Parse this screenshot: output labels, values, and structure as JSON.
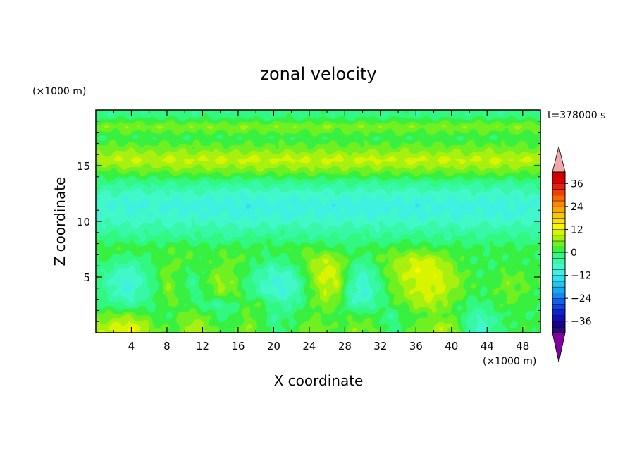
{
  "chart_data": {
    "type": "heatmap",
    "title": "zonal velocity",
    "xlabel": "X coordinate",
    "ylabel": "Z coordinate",
    "x_unit": "(×1000 m)",
    "y_unit": "(×1000 m)",
    "time_label": "t=378000 s",
    "xlim": [
      0,
      50
    ],
    "ylim": [
      0,
      20
    ],
    "x_ticks": [
      "4",
      "8",
      "12",
      "16",
      "20",
      "24",
      "28",
      "32",
      "36",
      "40",
      "44",
      "48"
    ],
    "x_tick_values": [
      4,
      8,
      12,
      16,
      20,
      24,
      28,
      32,
      36,
      40,
      44,
      48
    ],
    "y_ticks": [
      "5",
      "10",
      "15"
    ],
    "y_tick_values": [
      5,
      10,
      15
    ],
    "grid": false,
    "colorbar": {
      "placement": "right",
      "levels": [
        -42,
        -39,
        -36,
        -33,
        -30,
        -27,
        -24,
        -21,
        -18,
        -15,
        -12,
        -9,
        -6,
        -3,
        0,
        3,
        6,
        9,
        12,
        15,
        18,
        21,
        24,
        27,
        30,
        33,
        36,
        39,
        42
      ],
      "colors": [
        "#2a0a78",
        "#1b0090",
        "#1010b0",
        "#1020d0",
        "#1040e8",
        "#1060f0",
        "#1488f0",
        "#18a8f0",
        "#20c8f0",
        "#30e0ef",
        "#40f0e0",
        "#40f8c8",
        "#38f8a8",
        "#30f880",
        "#38f040",
        "#70f020",
        "#a8f010",
        "#d8f400",
        "#f8f800",
        "#f8e000",
        "#f8c800",
        "#f8a800",
        "#f88800",
        "#f86800",
        "#f04000",
        "#e82010",
        "#e00000",
        "#d00000"
      ],
      "labels": [
        "36",
        "24",
        "12",
        "0",
        "-12",
        "-24",
        "-36"
      ],
      "label_values": [
        36,
        24,
        12,
        0,
        -12,
        -24,
        -36
      ],
      "under_color": "#8000a0",
      "over_color": "#f0a8a8"
    },
    "z_rows": [
      [
        8,
        10,
        12,
        9,
        4,
        2,
        4,
        8,
        6,
        1,
        2,
        6,
        3,
        -2,
        0,
        2,
        6,
        4,
        2,
        5,
        4,
        3,
        -2,
        1,
        4,
        6,
        8,
        6,
        -4,
        -8,
        -3,
        0,
        2,
        1
      ],
      [
        4,
        5,
        6,
        4,
        1,
        0,
        3,
        5,
        3,
        -1,
        0,
        4,
        1,
        -3,
        -1,
        0,
        3,
        2,
        1,
        2,
        2,
        1,
        -3,
        0,
        2,
        3,
        4,
        2,
        -3,
        -6,
        -2,
        0,
        1,
        0
      ],
      [
        -1,
        -2,
        -4,
        -2,
        0,
        3,
        2,
        0,
        -2,
        -4,
        -1,
        2,
        3,
        -1,
        -4,
        -2,
        2,
        6,
        3,
        -4,
        -6,
        -2,
        1,
        3,
        6,
        8,
        6,
        2,
        -1,
        -2,
        1,
        3,
        2,
        0
      ],
      [
        -2,
        -6,
        -9,
        -5,
        -1,
        5,
        2,
        -2,
        1,
        5,
        4,
        0,
        -4,
        -8,
        -9,
        -4,
        3,
        8,
        6,
        -6,
        -10,
        -4,
        2,
        6,
        9,
        10,
        8,
        5,
        2,
        0,
        2,
        4,
        3,
        1
      ],
      [
        -3,
        -8,
        -10,
        -6,
        -1,
        6,
        1,
        -3,
        3,
        7,
        5,
        -1,
        -6,
        -9,
        -10,
        -5,
        4,
        10,
        9,
        -4,
        -9,
        -3,
        3,
        7,
        10,
        11,
        10,
        7,
        3,
        1,
        2,
        5,
        4,
        2
      ],
      [
        -2,
        -6,
        -8,
        -4,
        0,
        5,
        2,
        -1,
        2,
        5,
        3,
        0,
        -4,
        -7,
        -6,
        -2,
        6,
        11,
        8,
        -2,
        -7,
        -1,
        5,
        9,
        11,
        12,
        9,
        5,
        2,
        0,
        1,
        3,
        2,
        1
      ],
      [
        0,
        -1,
        -3,
        -2,
        1,
        3,
        3,
        2,
        1,
        3,
        4,
        2,
        0,
        -2,
        -1,
        2,
        6,
        9,
        7,
        1,
        -2,
        2,
        5,
        8,
        10,
        10,
        7,
        3,
        1,
        0,
        0,
        1,
        1,
        0
      ],
      [
        1,
        2,
        2,
        2,
        1,
        2,
        3,
        2,
        1,
        2,
        2,
        1,
        1,
        1,
        2,
        3,
        3,
        2,
        1,
        0,
        1,
        2,
        2,
        3,
        3,
        2,
        2,
        1,
        1,
        1,
        1,
        1,
        1,
        1
      ],
      [
        -2,
        -1,
        -2,
        -3,
        -2,
        -1,
        -2,
        -3,
        -2,
        -2,
        -3,
        -2,
        -1,
        -2,
        -3,
        -2,
        -2,
        -3,
        -3,
        -2,
        -2,
        -3,
        -2,
        -2,
        -1,
        -2,
        -3,
        -2,
        -2,
        -3,
        -2,
        -2,
        -2,
        -2
      ],
      [
        -5,
        -5,
        -6,
        -5,
        -5,
        -6,
        -5,
        -5,
        -6,
        -5,
        -5,
        -6,
        -6,
        -5,
        -5,
        -6,
        -5,
        -5,
        -6,
        -5,
        -5,
        -6,
        -5,
        -5,
        -6,
        -5,
        -5,
        -5,
        -6,
        -5,
        -5,
        -6,
        -5,
        -5
      ],
      [
        -8,
        -8,
        -9,
        -8,
        -8,
        -9,
        -9,
        -8,
        -9,
        -9,
        -10,
        -10,
        -9,
        -9,
        -10,
        -9,
        -9,
        -10,
        -9,
        -9,
        -10,
        -9,
        -9,
        -10,
        -10,
        -9,
        -9,
        -10,
        -9,
        -9,
        -10,
        -9,
        -9,
        -8
      ],
      [
        -9,
        -9,
        -10,
        -10,
        -9,
        -10,
        -10,
        -10,
        -11,
        -10,
        -10,
        -11,
        -11,
        -10,
        -10,
        -11,
        -10,
        -10,
        -11,
        -11,
        -10,
        -11,
        -10,
        -10,
        -11,
        -10,
        -10,
        -11,
        -10,
        -10,
        -11,
        -10,
        -10,
        -9
      ],
      [
        -6,
        -6,
        -7,
        -7,
        -6,
        -7,
        -7,
        -6,
        -7,
        -7,
        -8,
        -8,
        -7,
        -7,
        -8,
        -7,
        -7,
        -8,
        -7,
        -7,
        -8,
        -7,
        -7,
        -8,
        -8,
        -7,
        -7,
        -8,
        -7,
        -7,
        -8,
        -7,
        -7,
        -6
      ],
      [
        -2,
        -2,
        -3,
        -2,
        -2,
        -3,
        -2,
        -2,
        -3,
        -2,
        -2,
        -3,
        -3,
        -2,
        -2,
        -3,
        -2,
        -2,
        -3,
        -2,
        -2,
        -3,
        -2,
        -2,
        -3,
        -2,
        -2,
        -2,
        -3,
        -2,
        -2,
        -3,
        -2,
        -2
      ],
      [
        3,
        3,
        4,
        4,
        3,
        4,
        5,
        4,
        4,
        5,
        4,
        4,
        5,
        4,
        4,
        5,
        5,
        4,
        5,
        4,
        4,
        5,
        4,
        4,
        5,
        4,
        4,
        5,
        4,
        4,
        5,
        4,
        4,
        3
      ],
      [
        8,
        9,
        10,
        9,
        9,
        10,
        10,
        9,
        10,
        10,
        9,
        10,
        10,
        9,
        10,
        10,
        9,
        10,
        10,
        9,
        10,
        10,
        9,
        10,
        10,
        9,
        10,
        10,
        9,
        10,
        10,
        9,
        10,
        9
      ],
      [
        4,
        5,
        5,
        5,
        4,
        5,
        5,
        4,
        5,
        5,
        4,
        5,
        5,
        4,
        5,
        5,
        4,
        5,
        5,
        4,
        5,
        5,
        4,
        5,
        5,
        4,
        5,
        5,
        4,
        5,
        5,
        4,
        5,
        4
      ],
      [
        0,
        1,
        1,
        0,
        1,
        1,
        0,
        1,
        1,
        0,
        1,
        1,
        0,
        1,
        1,
        0,
        1,
        1,
        0,
        1,
        1,
        0,
        1,
        1,
        0,
        1,
        1,
        0,
        1,
        1,
        0,
        1,
        1,
        0
      ],
      [
        5,
        5,
        6,
        5,
        5,
        6,
        5,
        5,
        6,
        5,
        5,
        6,
        5,
        5,
        6,
        5,
        5,
        6,
        5,
        5,
        6,
        5,
        5,
        6,
        5,
        5,
        6,
        5,
        5,
        6,
        5,
        5,
        6,
        5
      ],
      [
        -2,
        -2,
        -1,
        -2,
        -2,
        -1,
        -2,
        -2,
        -1,
        -2,
        -2,
        -1,
        -2,
        -2,
        -1,
        -2,
        -2,
        -1,
        -2,
        -2,
        -1,
        -2,
        -2,
        -1,
        -2,
        -2,
        -1,
        -2,
        -2,
        -1,
        -2,
        -2,
        -1,
        -2
      ]
    ]
  }
}
